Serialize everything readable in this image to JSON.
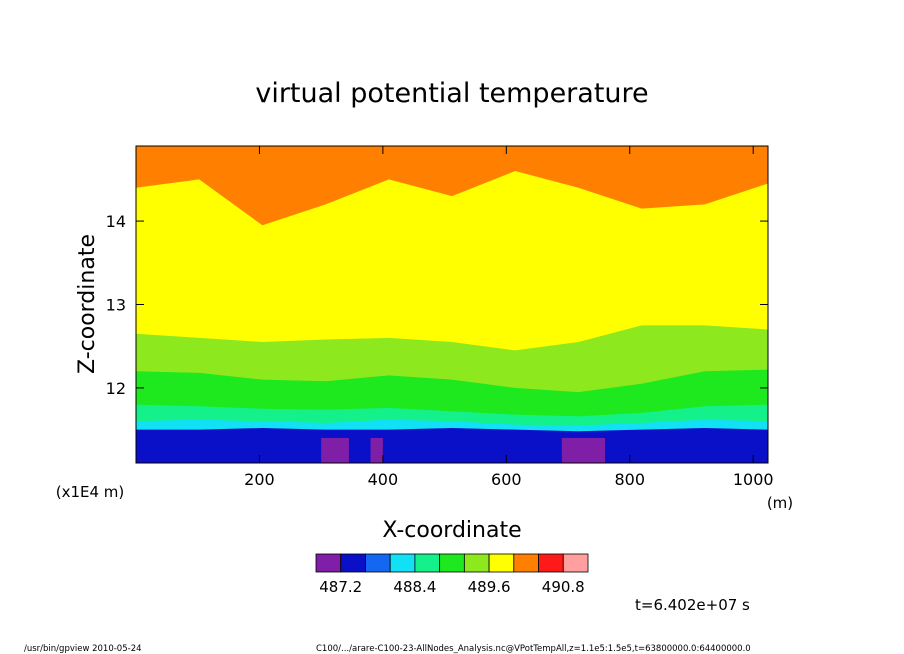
{
  "chart_data": {
    "type": "heatmap",
    "title": "virtual potential temperature",
    "xlabel": "X-coordinate",
    "ylabel": "Z-coordinate",
    "x_unit": "(m)",
    "y_unit": "(x1E4 m)",
    "xlim": [
      0,
      1024
    ],
    "ylim": [
      11.1,
      14.9
    ],
    "x_ticks": [
      "200",
      "400",
      "600",
      "800",
      "1000"
    ],
    "x_tick_values": [
      200,
      400,
      600,
      800,
      1000
    ],
    "y_ticks": [
      "12",
      "13",
      "14"
    ],
    "y_tick_values": [
      12,
      13,
      14
    ],
    "colorbar": {
      "colors": [
        "#7f1fa8",
        "#0a10c8",
        "#1467f0",
        "#12e0f5",
        "#14f08a",
        "#1ee81e",
        "#8ee81e",
        "#ffff00",
        "#ff7f00",
        "#ff1a1a",
        "#ff9f9f"
      ],
      "tick_labels": [
        "487.2",
        "488.4",
        "489.6",
        "490.8"
      ]
    },
    "layers": [
      {
        "band": "blue (<487.2)",
        "upper_z": [
          11.5,
          11.5,
          11.52,
          11.5,
          11.5,
          11.52,
          11.5,
          11.48,
          11.5,
          11.52,
          11.5
        ]
      },
      {
        "band": "cyan",
        "upper_z": [
          11.6,
          11.62,
          11.6,
          11.58,
          11.62,
          11.6,
          11.56,
          11.55,
          11.58,
          11.62,
          11.6
        ]
      },
      {
        "band": "sea green",
        "upper_z": [
          11.8,
          11.78,
          11.75,
          11.74,
          11.76,
          11.72,
          11.68,
          11.66,
          11.7,
          11.78,
          11.8
        ]
      },
      {
        "band": "green",
        "upper_z": [
          12.2,
          12.18,
          12.1,
          12.08,
          12.15,
          12.1,
          12.0,
          11.95,
          12.05,
          12.2,
          12.22
        ]
      },
      {
        "band": "yellow-green",
        "upper_z": [
          12.65,
          12.6,
          12.55,
          12.58,
          12.6,
          12.55,
          12.45,
          12.55,
          12.75,
          12.75,
          12.7
        ]
      },
      {
        "band": "yellow",
        "upper_z": [
          14.4,
          14.5,
          13.95,
          14.2,
          14.5,
          14.3,
          14.6,
          14.4,
          14.15,
          14.2,
          14.45
        ]
      }
    ],
    "time_label": "t=6.402e+07 s"
  },
  "footer": {
    "left": "/usr/bin/gpview   2010-05-24",
    "right": "C100/.../arare-C100-23-AllNodes_Analysis.nc@VPotTempAll,z=1.1e5:1.5e5,t=63800000.0:64400000.0"
  }
}
